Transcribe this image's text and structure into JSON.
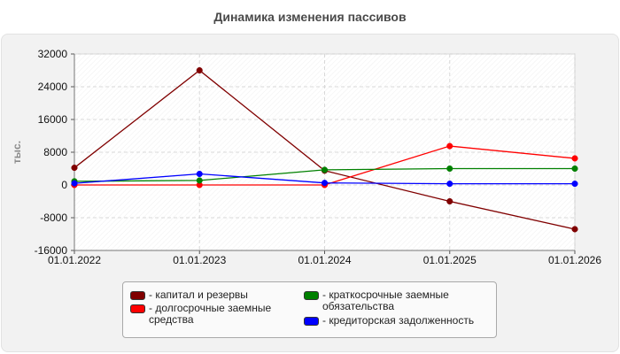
{
  "chart_data": {
    "type": "line",
    "title": "Динамика изменения пассивов",
    "ylabel": "тыс.",
    "xlabel": "",
    "categories": [
      "01.01.2022",
      "01.01.2023",
      "01.01.2024",
      "01.01.2025",
      "01.01.2026"
    ],
    "ylim": [
      -16000,
      32000
    ],
    "yticks": [
      32000,
      24000,
      16000,
      8000,
      0,
      -8000,
      -16000
    ],
    "ytick_labels": [
      "32000",
      "24000",
      "16000",
      "8000",
      "0",
      "-8000",
      "-16000"
    ],
    "grid": true,
    "legend_position": "bottom",
    "series": [
      {
        "name": "- капитал и резервы",
        "color": "#800000",
        "values": [
          4200,
          28000,
          3500,
          -4000,
          -10800
        ]
      },
      {
        "name": "- долгосрочные заемные средства",
        "color": "#ff0000",
        "values": [
          0,
          0,
          0,
          9500,
          6500
        ]
      },
      {
        "name": "- краткосрочные заемные обязательства",
        "color": "#008000",
        "values": [
          900,
          1100,
          3700,
          4000,
          4000
        ]
      },
      {
        "name": "- кредиторская задолженность",
        "color": "#0000ff",
        "values": [
          400,
          2700,
          500,
          300,
          300
        ]
      }
    ]
  }
}
